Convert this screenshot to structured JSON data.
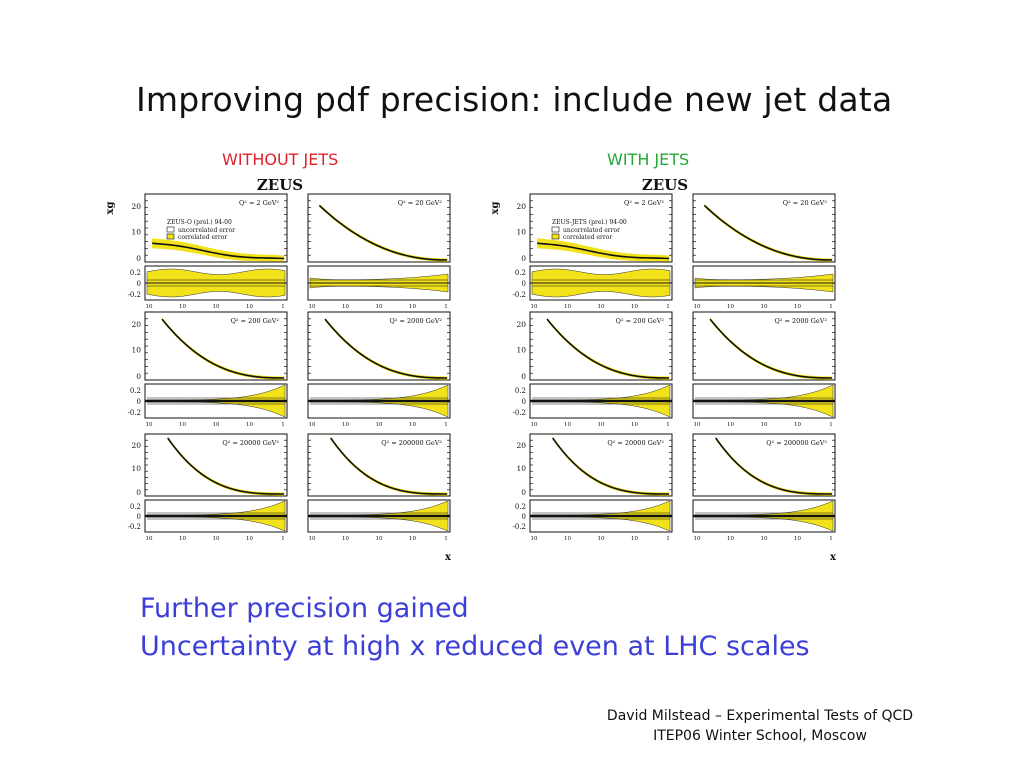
{
  "slide": {
    "title": "Improving pdf precision: include new jet data",
    "left_label": "WITHOUT JETS",
    "right_label": "WITH JETS",
    "bottom_lines": [
      "Further precision gained",
      "Uncertainty at high x reduced even at LHC scales"
    ],
    "footer_lines": [
      "David Milstead – Experimental Tests of QCD",
      "ITEP06 Winter School, Moscow"
    ]
  },
  "colors": {
    "left_label": "#e0202a",
    "right_label": "#22a833",
    "bottom_text": "#3b3fd8",
    "error_band": "#f2e21a"
  },
  "chart_data": [
    {
      "type": "line",
      "title": "ZEUS",
      "xlabel": "x",
      "ylabel": "xg",
      "x_scale": "log",
      "fit_label": "ZEUS-O (prel.) 94-00",
      "legend": [
        "uncorrelated error",
        "correlated error"
      ],
      "panels": [
        "Q² = 2 GeV²",
        "Q² = 20 GeV²",
        "Q² = 200 GeV²",
        "Q² = 2000 GeV²",
        "Q² = 20000 GeV²",
        "Q² = 200000 GeV²"
      ],
      "yticks": [
        "0",
        "10",
        "20"
      ],
      "ratio_yticks": [
        "0.2",
        "0",
        "-0.2"
      ],
      "xticks": [
        "10",
        "10",
        "10",
        "10",
        "1"
      ]
    },
    {
      "type": "line",
      "title": "ZEUS",
      "xlabel": "x",
      "ylabel": "xg",
      "x_scale": "log",
      "fit_label": "ZEUS-JETS (prel.) 94-00",
      "legend": [
        "uncorrelated error",
        "correlated error"
      ],
      "panels": [
        "Q² = 2 GeV²",
        "Q² = 20 GeV²",
        "Q² = 200 GeV²",
        "Q² = 2000 GeV²",
        "Q² = 20000 GeV²",
        "Q² = 200000 GeV²"
      ],
      "yticks": [
        "0",
        "10",
        "20"
      ],
      "ratio_yticks": [
        "0.2",
        "0",
        "-0.2"
      ],
      "xticks": [
        "10",
        "10",
        "10",
        "10",
        "1"
      ]
    }
  ]
}
